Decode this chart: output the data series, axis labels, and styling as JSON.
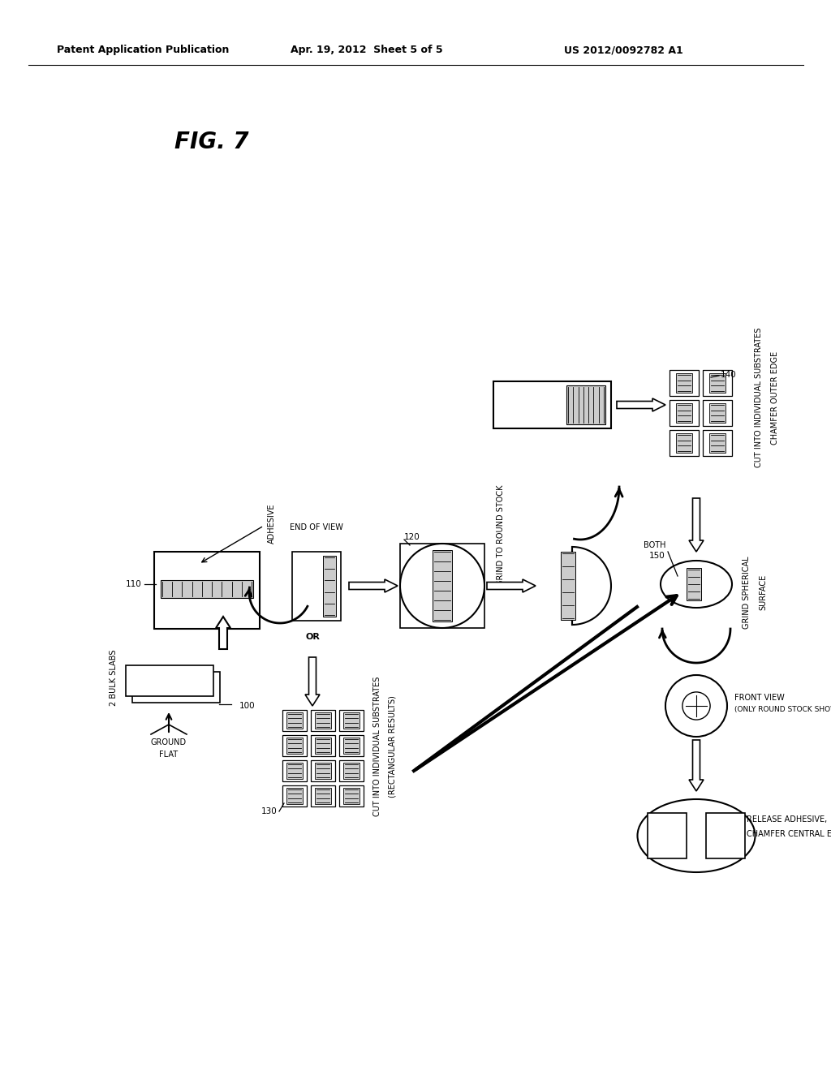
{
  "bg_color": "#ffffff",
  "line_color": "#000000",
  "header_left": "Patent Application Publication",
  "header_mid": "Apr. 19, 2012  Sheet 5 of 5",
  "header_right": "US 2012/0092782 A1",
  "fig_label": "FIG. 7"
}
